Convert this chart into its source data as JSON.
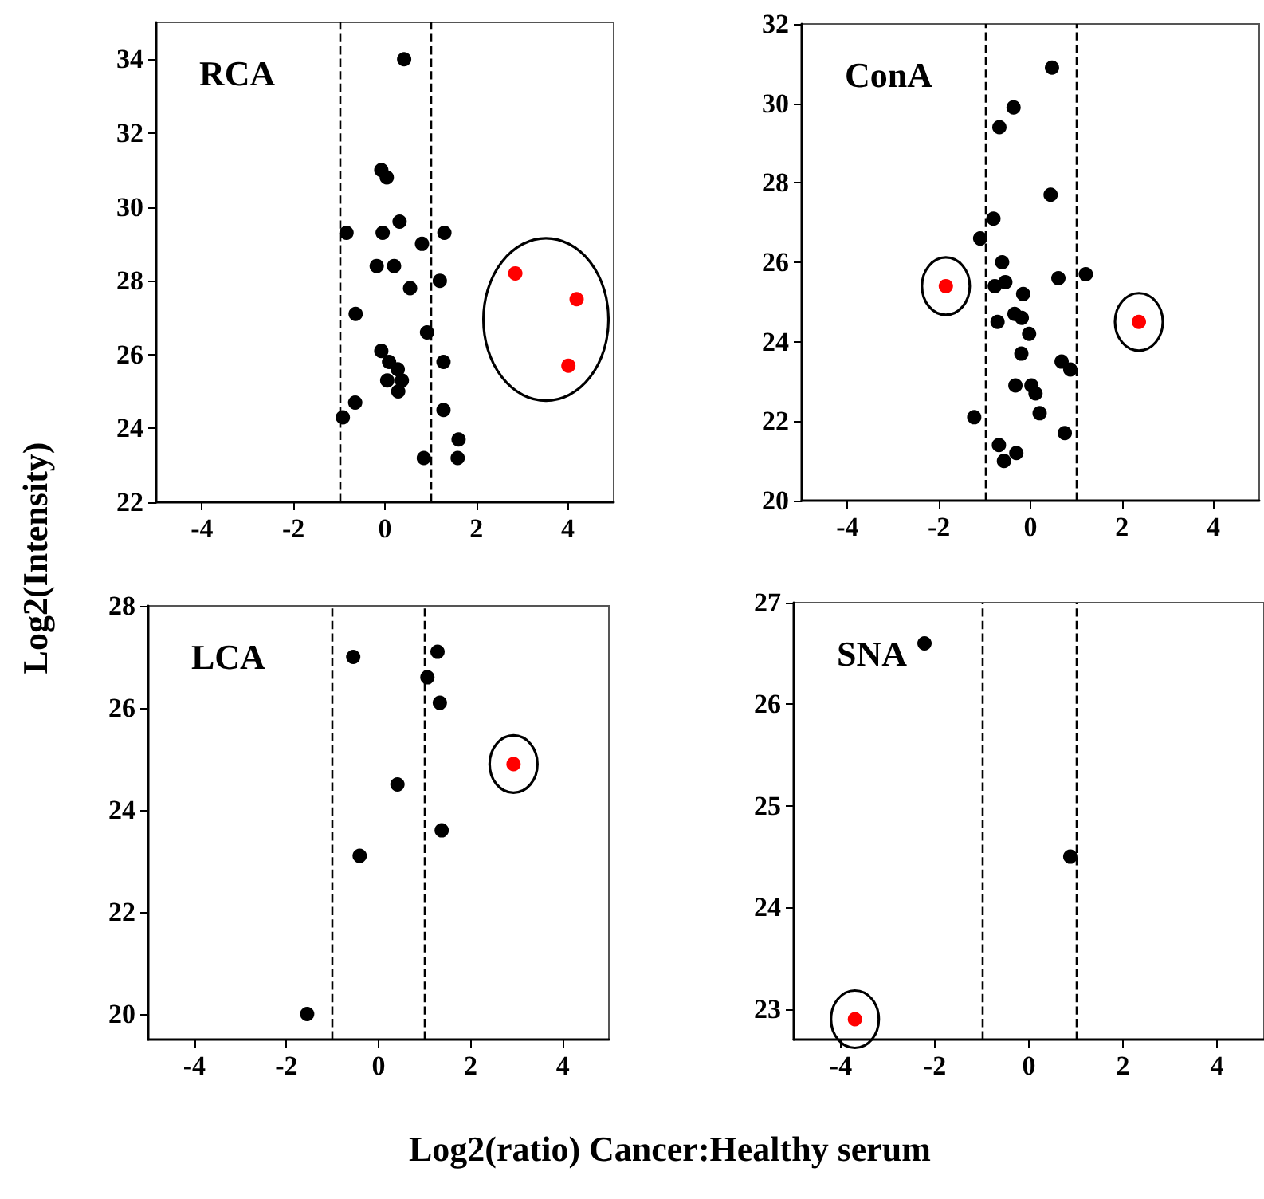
{
  "chart_data": [
    {
      "type": "scatter",
      "title": "RCA",
      "ylabel": "Log2(Intensity)",
      "xlim": [
        -5,
        5
      ],
      "xticks": [
        -4,
        -2,
        0,
        2,
        4
      ],
      "ylim": [
        22,
        35
      ],
      "yticks": [
        22,
        24,
        26,
        28,
        30,
        32,
        34
      ],
      "marker": "circle",
      "grid": false,
      "ref_lines": [
        {
          "axis": "x",
          "value": -1,
          "line_style": "dashed"
        },
        {
          "axis": "x",
          "value": 1,
          "line_style": "dashed"
        }
      ],
      "series": [
        {
          "color": "#000000",
          "x": [
            0.42,
            -0.08,
            0.04,
            0.32,
            -0.84,
            -0.05,
            1.3,
            0.81,
            -0.18,
            0.2,
            1.2,
            0.55,
            -0.64,
            0.92,
            -0.08,
            0.09,
            0.28,
            1.28,
            0.05,
            0.37,
            0.29,
            1.28,
            -0.65,
            -0.92,
            1.61,
            0.85,
            1.59
          ],
          "values": [
            34.0,
            31.0,
            30.8,
            29.6,
            29.3,
            29.3,
            29.3,
            29.0,
            28.4,
            28.4,
            28.0,
            27.8,
            27.1,
            26.6,
            26.1,
            25.8,
            25.6,
            25.8,
            25.3,
            25.3,
            25.0,
            24.5,
            24.7,
            24.3,
            23.7,
            23.2,
            23.2
          ]
        },
        {
          "color": "#ff0000",
          "x": [
            2.85,
            4.19,
            4.01
          ],
          "values": [
            28.2,
            27.5,
            25.7
          ]
        }
      ]
    },
    {
      "type": "scatter",
      "title": "ConA",
      "xlim": [
        -5,
        5
      ],
      "xticks": [
        -4,
        -2,
        0,
        2,
        4
      ],
      "ylim": [
        20,
        32
      ],
      "yticks": [
        20,
        22,
        24,
        26,
        28,
        30,
        32
      ],
      "marker": "circle",
      "grid": false,
      "ref_lines": [
        {
          "axis": "x",
          "value": -1,
          "line_style": "dashed"
        },
        {
          "axis": "x",
          "value": 1,
          "line_style": "dashed"
        }
      ],
      "series": [
        {
          "color": "#000000",
          "x": [
            0.47,
            -0.37,
            -0.68,
            0.44,
            -0.81,
            -1.1,
            -0.62,
            0.61,
            1.21,
            -0.78,
            -0.55,
            -0.16,
            -0.72,
            -0.35,
            -0.19,
            -0.03,
            -0.2,
            0.68,
            0.87,
            -0.33,
            0.02,
            0.11,
            0.2,
            -1.23,
            0.75,
            -0.69,
            -0.31,
            -0.58
          ],
          "values": [
            30.9,
            29.9,
            29.4,
            27.7,
            27.1,
            26.6,
            26.0,
            25.6,
            25.7,
            25.4,
            25.5,
            25.2,
            24.5,
            24.7,
            24.6,
            24.2,
            23.7,
            23.5,
            23.3,
            22.9,
            22.9,
            22.7,
            22.2,
            22.1,
            21.7,
            21.4,
            21.2,
            21.0
          ]
        },
        {
          "color": "#ff0000",
          "x": [
            -1.85,
            2.37
          ],
          "values": [
            25.4,
            24.5
          ]
        }
      ]
    },
    {
      "type": "scatter",
      "title": "LCA",
      "xlabel": "Log2(ratio) Cancer:Healthy serum",
      "xlim": [
        -5,
        5
      ],
      "xticks": [
        -4,
        -2,
        0,
        2,
        4
      ],
      "ylim": [
        19.5,
        28
      ],
      "yticks": [
        20,
        22,
        24,
        26,
        28
      ],
      "marker": "circle",
      "grid": false,
      "ref_lines": [
        {
          "axis": "x",
          "value": -1,
          "line_style": "dashed"
        },
        {
          "axis": "x",
          "value": 1,
          "line_style": "dashed"
        }
      ],
      "series": [
        {
          "color": "#000000",
          "x": [
            -0.55,
            1.28,
            1.06,
            1.33,
            0.41,
            1.37,
            -0.41,
            -1.55
          ],
          "values": [
            27.0,
            27.1,
            26.6,
            26.1,
            24.5,
            23.6,
            23.1,
            20.0
          ]
        },
        {
          "color": "#ff0000",
          "x": [
            2.93
          ],
          "values": [
            24.9
          ]
        }
      ]
    },
    {
      "type": "scatter",
      "title": "SNA",
      "xlim": [
        -5,
        5
      ],
      "xticks": [
        -4,
        -2,
        0,
        2,
        4
      ],
      "ylim": [
        22.7,
        27
      ],
      "yticks": [
        23,
        24,
        25,
        26,
        27
      ],
      "marker": "circle",
      "grid": false,
      "ref_lines": [
        {
          "axis": "x",
          "value": -1,
          "line_style": "dashed"
        },
        {
          "axis": "x",
          "value": 1,
          "line_style": "dashed"
        }
      ],
      "series": [
        {
          "color": "#000000",
          "x": [
            -2.22,
            0.88
          ],
          "values": [
            26.6,
            24.5
          ]
        },
        {
          "color": "#ff0000",
          "x": [
            -3.7
          ],
          "values": [
            22.9
          ]
        }
      ]
    }
  ]
}
